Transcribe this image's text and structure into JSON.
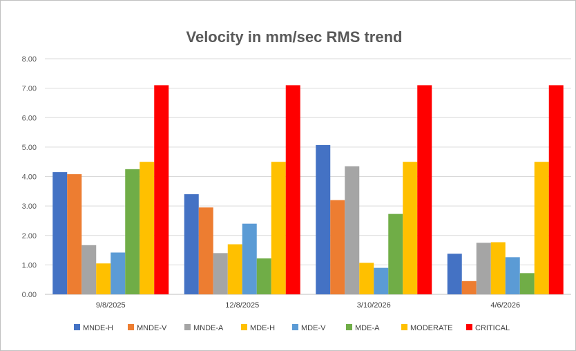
{
  "chart_data": {
    "type": "bar",
    "title": "Velocity in mm/sec RMS trend",
    "xlabel": "",
    "ylabel": "",
    "ylim": [
      0,
      8
    ],
    "yticks": [
      "0.00",
      "1.00",
      "2.00",
      "3.00",
      "4.00",
      "5.00",
      "6.00",
      "7.00",
      "8.00"
    ],
    "grid": true,
    "legend_position": "bottom",
    "categories": [
      "9/8/2025",
      "12/8/2025",
      "3/10/2026",
      "4/6/2026"
    ],
    "series": [
      {
        "name": "MNDE-H",
        "color": "#4472C4",
        "values": [
          4.15,
          3.4,
          5.07,
          1.38
        ]
      },
      {
        "name": "MNDE-V",
        "color": "#ED7D31",
        "values": [
          4.08,
          2.95,
          3.2,
          0.45
        ]
      },
      {
        "name": "MNDE-A",
        "color": "#A5A5A5",
        "values": [
          1.67,
          1.4,
          4.35,
          1.75
        ]
      },
      {
        "name": "MDE-H",
        "color": "#FFC000",
        "values": [
          1.05,
          1.7,
          1.07,
          1.77
        ]
      },
      {
        "name": "MDE-V",
        "color": "#5B9BD5",
        "values": [
          1.42,
          2.4,
          0.9,
          1.26
        ]
      },
      {
        "name": "MDE-A",
        "color": "#70AD47",
        "values": [
          4.25,
          1.22,
          2.73,
          0.72
        ]
      },
      {
        "name": "MODERATE",
        "color": "#FFC000",
        "values": [
          4.5,
          4.5,
          4.5,
          4.5
        ]
      },
      {
        "name": "CRITICAL",
        "color": "#FF0000",
        "values": [
          7.1,
          7.1,
          7.1,
          7.1
        ]
      }
    ]
  }
}
